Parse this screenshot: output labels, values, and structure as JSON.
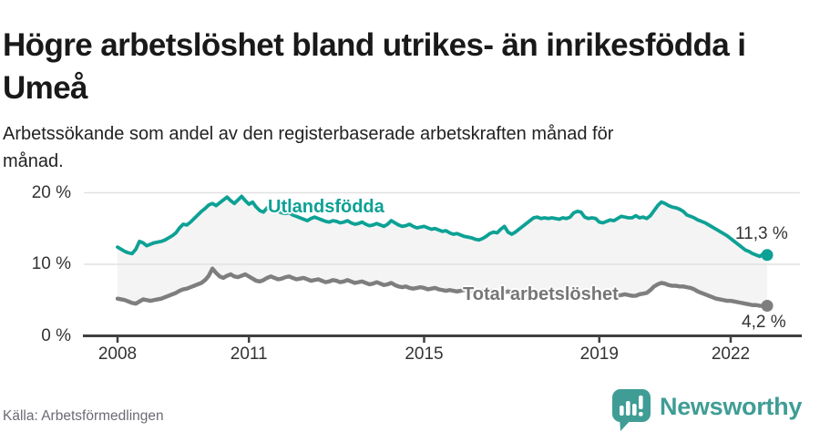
{
  "header": {
    "title": "Högre arbetslöshet bland utrikes- än inrikesfödda i Umeå",
    "subtitle": "Arbetssökande som andel av den registerbaserade arbetskraften månad för månad."
  },
  "footer": {
    "source": "Källa: Arbetsförmedlingen",
    "logo_text": "Newsworthy"
  },
  "colors": {
    "accent": "#0da195",
    "gray_line": "#7e7e7e",
    "label_gray": "#767676",
    "text_dark": "#191919",
    "text_body": "#222222",
    "tick_label": "#333333",
    "axis": "#404040",
    "grid": "#e2e2e2",
    "band": "#f4f4f4",
    "source": "#6b6b74",
    "logo": "#3f9d95"
  },
  "chart_data": {
    "type": "line",
    "title": "Högre arbetslöshet bland utrikes- än inrikesfödda i Umeå",
    "xlabel": "",
    "ylabel": "Arbetssökande som andel av den registerbaserade arbetskraften",
    "unit": "%",
    "frequency": "monthly",
    "x_start": "2008-01",
    "x_end": "2022-11",
    "ylim": [
      0,
      21
    ],
    "grid": true,
    "legend_position": "inline-labels",
    "x_ticks": [
      {
        "year": 2008,
        "label": "2008"
      },
      {
        "year": 2011,
        "label": "2011"
      },
      {
        "year": 2015,
        "label": "2015"
      },
      {
        "year": 2019,
        "label": "2019"
      },
      {
        "year": 2022,
        "label": "2022"
      }
    ],
    "y_ticks": [
      {
        "value": 0,
        "label": "0 %"
      },
      {
        "value": 10,
        "label": "10 %"
      },
      {
        "value": 20,
        "label": "20 %"
      }
    ],
    "series": [
      {
        "name": "Utlandsfödda",
        "label": "Utlandsfödda",
        "color": "#0da195",
        "line_width": 3.8,
        "end_value": 11.3,
        "end_label": "11,3 %",
        "values": [
          12.4,
          12.1,
          11.8,
          11.6,
          11.5,
          12.1,
          13.2,
          13.0,
          12.6,
          12.8,
          13.0,
          13.1,
          13.2,
          13.4,
          13.7,
          14.0,
          14.4,
          15.1,
          15.6,
          15.5,
          15.9,
          16.4,
          16.9,
          17.4,
          17.8,
          18.3,
          18.5,
          18.2,
          18.6,
          19.0,
          19.4,
          18.9,
          18.5,
          19.0,
          19.5,
          18.9,
          18.4,
          18.7,
          18.0,
          17.5,
          17.3,
          17.9,
          17.7,
          17.5,
          17.4,
          17.2,
          17.1,
          17.2,
          16.9,
          16.7,
          16.5,
          16.3,
          16.1,
          16.4,
          16.6,
          16.4,
          16.2,
          16.0,
          15.9,
          16.1,
          16.0,
          15.8,
          15.9,
          16.1,
          15.8,
          15.6,
          15.7,
          15.9,
          15.6,
          15.4,
          15.5,
          15.7,
          15.5,
          15.3,
          15.6,
          16.1,
          15.8,
          15.5,
          15.3,
          15.4,
          15.6,
          15.3,
          15.1,
          15.2,
          15.3,
          15.1,
          14.9,
          15.0,
          14.8,
          14.6,
          14.7,
          14.4,
          14.2,
          14.3,
          14.1,
          13.9,
          13.8,
          13.7,
          13.5,
          13.4,
          13.6,
          13.9,
          14.3,
          14.5,
          14.4,
          14.9,
          15.3,
          14.5,
          14.2,
          14.5,
          14.9,
          15.3,
          15.7,
          16.1,
          16.5,
          16.6,
          16.4,
          16.5,
          16.4,
          16.5,
          16.4,
          16.3,
          16.5,
          16.4,
          16.6,
          17.2,
          17.4,
          17.3,
          16.6,
          16.4,
          16.5,
          16.4,
          15.9,
          15.8,
          16.0,
          16.2,
          16.1,
          16.4,
          16.7,
          16.6,
          16.5,
          16.5,
          16.8,
          16.5,
          16.6,
          16.4,
          16.8,
          17.5,
          18.2,
          18.7,
          18.5,
          18.2,
          18.0,
          17.9,
          17.7,
          17.4,
          16.9,
          16.7,
          16.5,
          16.2,
          16.0,
          15.8,
          15.5,
          15.2,
          14.9,
          14.6,
          14.3,
          14.0,
          13.6,
          13.2,
          12.8,
          12.4,
          12.0,
          11.8,
          11.5,
          11.3,
          11.1,
          11.5,
          11.3
        ]
      },
      {
        "name": "Total arbetslöshet",
        "label": "Total arbetslöshet",
        "color": "#7e7e7e",
        "line_width": 4.4,
        "end_value": 4.2,
        "end_label": "4,2 %",
        "values": [
          5.2,
          5.1,
          5.0,
          4.8,
          4.6,
          4.5,
          4.8,
          5.1,
          5.0,
          4.9,
          5.0,
          5.1,
          5.2,
          5.4,
          5.6,
          5.8,
          6.0,
          6.3,
          6.5,
          6.6,
          6.8,
          7.0,
          7.2,
          7.4,
          7.8,
          8.4,
          9.4,
          8.8,
          8.3,
          8.1,
          8.4,
          8.6,
          8.3,
          8.2,
          8.4,
          8.6,
          8.3,
          8.0,
          7.7,
          7.6,
          7.8,
          8.1,
          8.3,
          8.1,
          7.9,
          8.0,
          8.2,
          8.3,
          8.1,
          7.9,
          8.0,
          8.1,
          7.9,
          7.7,
          7.8,
          7.9,
          7.7,
          7.5,
          7.6,
          7.8,
          7.7,
          7.5,
          7.6,
          7.8,
          7.6,
          7.4,
          7.5,
          7.6,
          7.4,
          7.2,
          7.3,
          7.5,
          7.3,
          7.1,
          7.2,
          7.4,
          7.1,
          6.9,
          6.8,
          6.9,
          6.7,
          6.6,
          6.7,
          6.8,
          6.7,
          6.5,
          6.6,
          6.7,
          6.5,
          6.4,
          6.3,
          6.4,
          6.3,
          6.2,
          6.3,
          6.4,
          6.3,
          6.2,
          6.3,
          6.4,
          6.2,
          6.1,
          6.2,
          6.3,
          6.1,
          6.0,
          6.1,
          6.2,
          6.1,
          6.0,
          6.1,
          6.2,
          6.0,
          5.9,
          6.0,
          6.1,
          5.9,
          5.8,
          5.9,
          6.0,
          5.9,
          5.8,
          5.9,
          6.0,
          5.8,
          5.7,
          5.8,
          5.9,
          5.7,
          5.6,
          5.7,
          5.8,
          5.7,
          5.6,
          5.7,
          5.8,
          5.7,
          5.6,
          5.7,
          5.8,
          5.7,
          5.6,
          5.6,
          5.8,
          5.9,
          6.0,
          6.4,
          6.9,
          7.2,
          7.4,
          7.3,
          7.1,
          7.0,
          7.0,
          6.9,
          6.9,
          6.8,
          6.7,
          6.5,
          6.2,
          6.0,
          5.8,
          5.6,
          5.4,
          5.2,
          5.1,
          5.0,
          4.9,
          4.9,
          4.8,
          4.7,
          4.6,
          4.5,
          4.4,
          4.3,
          4.3,
          4.2,
          4.2,
          4.2
        ]
      }
    ]
  }
}
